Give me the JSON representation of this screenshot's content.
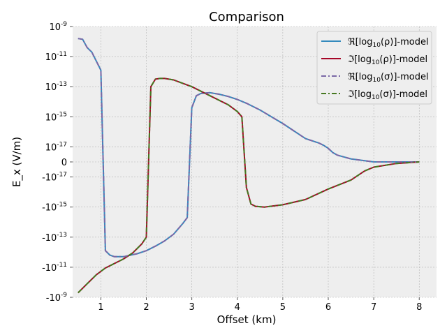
{
  "chart_data": {
    "type": "line",
    "title": "Comparison",
    "xlabel": "Offset (km)",
    "ylabel": "E_x (V/m)",
    "xlim": [
      0.38,
      8.38
    ],
    "ylim": [
      -9.0,
      9.0
    ],
    "y_scale": "symlog",
    "grid": true,
    "legend_position": "top-right",
    "x_ticks": [
      1,
      2,
      3,
      4,
      5,
      6,
      7,
      8
    ],
    "x_tick_labels": [
      "1",
      "2",
      "3",
      "4",
      "5",
      "6",
      "7",
      "8"
    ],
    "y_ticks": [
      {
        "pos": 9.0,
        "label": "10",
        "exp": "-9"
      },
      {
        "pos": 7.0,
        "label": "10",
        "exp": "-11"
      },
      {
        "pos": 5.0,
        "label": "10",
        "exp": "-13"
      },
      {
        "pos": 3.0,
        "label": "10",
        "exp": "-15"
      },
      {
        "pos": 1.0,
        "label": "10",
        "exp": "-17"
      },
      {
        "pos": 0.0,
        "label": "0",
        "exp": ""
      },
      {
        "pos": -1.0,
        "label": "-10",
        "exp": "-17"
      },
      {
        "pos": -3.0,
        "label": "-10",
        "exp": "-15"
      },
      {
        "pos": -5.0,
        "label": "-10",
        "exp": "-13"
      },
      {
        "pos": -7.0,
        "label": "-10",
        "exp": "-11"
      },
      {
        "pos": -9.0,
        "label": "-10",
        "exp": "-9"
      }
    ],
    "series": [
      {
        "name": "ℜ[log10(ρ)]-model",
        "color": "#348ABD",
        "dash": "solid",
        "x": [
          0.5,
          0.6,
          0.7,
          0.8,
          0.9,
          1.0,
          1.1,
          1.2,
          1.3,
          1.5,
          1.8,
          2.0,
          2.2,
          2.4,
          2.6,
          2.8,
          2.9,
          3.0,
          3.1,
          3.2,
          3.4,
          3.6,
          3.8,
          4.0,
          4.2,
          4.5,
          5.0,
          5.5,
          5.8,
          5.9,
          6.0,
          6.1,
          6.2,
          6.5,
          7.0,
          7.5,
          8.0
        ],
        "y": [
          8.2,
          8.15,
          7.6,
          7.3,
          6.7,
          6.1,
          -5.9,
          -6.2,
          -6.3,
          -6.3,
          -6.1,
          -5.9,
          -5.6,
          -5.25,
          -4.8,
          -4.1,
          -3.7,
          3.6,
          4.4,
          4.55,
          4.6,
          4.5,
          4.35,
          4.15,
          3.9,
          3.45,
          2.55,
          1.55,
          1.25,
          1.1,
          0.9,
          0.62,
          0.45,
          0.2,
          0.0,
          0.0,
          0.0
        ]
      },
      {
        "name": "ℑ[log10(ρ)]-model",
        "color": "#A60628",
        "dash": "solid",
        "x": [
          0.5,
          0.7,
          0.9,
          1.1,
          1.3,
          1.5,
          1.7,
          1.9,
          2.0,
          2.1,
          2.2,
          2.3,
          2.4,
          2.6,
          3.0,
          3.4,
          3.8,
          4.0,
          4.1,
          4.2,
          4.3,
          4.4,
          4.6,
          5.0,
          5.5,
          6.0,
          6.5,
          6.8,
          7.0,
          7.5,
          8.0
        ],
        "y": [
          -8.7,
          -8.1,
          -7.5,
          -7.05,
          -6.75,
          -6.45,
          -6.05,
          -5.45,
          -5.0,
          5.0,
          5.5,
          5.55,
          5.55,
          5.45,
          5.0,
          4.4,
          3.8,
          3.35,
          3.0,
          -1.7,
          -2.8,
          -2.95,
          -3.0,
          -2.85,
          -2.5,
          -1.8,
          -1.2,
          -0.6,
          -0.35,
          -0.1,
          0.0
        ]
      },
      {
        "name": "ℜ[log10(σ)]-model",
        "color": "#7A68A6",
        "dash": "dashdot",
        "x": [
          0.5,
          0.6,
          0.7,
          0.8,
          0.9,
          1.0,
          1.1,
          1.2,
          1.3,
          1.5,
          1.8,
          2.0,
          2.2,
          2.4,
          2.6,
          2.8,
          2.9,
          3.0,
          3.1,
          3.2,
          3.4,
          3.6,
          3.8,
          4.0,
          4.2,
          4.5,
          5.0,
          5.5,
          5.8,
          5.9,
          6.0,
          6.1,
          6.2,
          6.5,
          7.0,
          7.5,
          8.0
        ],
        "y": [
          8.2,
          8.15,
          7.6,
          7.3,
          6.7,
          6.1,
          -5.9,
          -6.2,
          -6.3,
          -6.3,
          -6.1,
          -5.9,
          -5.6,
          -5.25,
          -4.8,
          -4.1,
          -3.7,
          3.6,
          4.4,
          4.55,
          4.6,
          4.5,
          4.35,
          4.15,
          3.9,
          3.45,
          2.55,
          1.55,
          1.25,
          1.1,
          0.9,
          0.62,
          0.45,
          0.2,
          0.0,
          0.0,
          0.0
        ]
      },
      {
        "name": "ℑ[log10(σ)]-model",
        "color": "#467821",
        "dash": "dashdot",
        "x": [
          0.5,
          0.7,
          0.9,
          1.1,
          1.3,
          1.5,
          1.7,
          1.9,
          2.0,
          2.1,
          2.2,
          2.3,
          2.4,
          2.6,
          3.0,
          3.4,
          3.8,
          4.0,
          4.1,
          4.2,
          4.3,
          4.4,
          4.6,
          5.0,
          5.5,
          6.0,
          6.5,
          6.8,
          7.0,
          7.5,
          8.0
        ],
        "y": [
          -8.7,
          -8.1,
          -7.5,
          -7.05,
          -6.75,
          -6.45,
          -6.05,
          -5.45,
          -5.0,
          5.0,
          5.5,
          5.55,
          5.55,
          5.45,
          5.0,
          4.4,
          3.8,
          3.35,
          3.0,
          -1.7,
          -2.8,
          -2.95,
          -3.0,
          -2.85,
          -2.5,
          -1.8,
          -1.2,
          -0.6,
          -0.35,
          -0.1,
          0.0
        ]
      }
    ]
  }
}
